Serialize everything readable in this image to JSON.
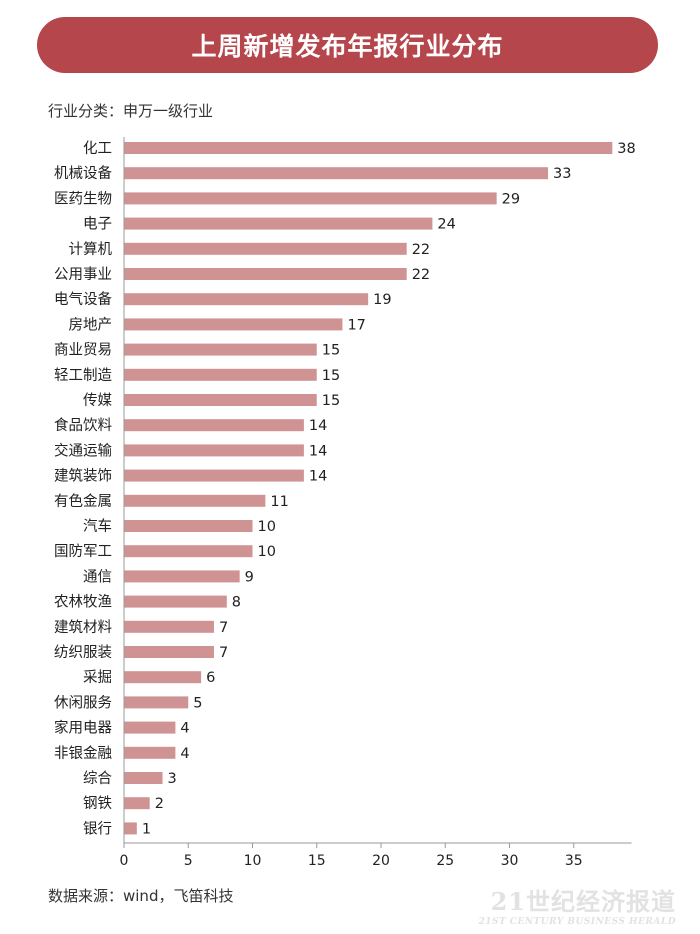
{
  "header": {
    "title": "上周新增发布年报行业分布",
    "subtitle": "行业分类：申万一级行业"
  },
  "footer": {
    "source": "数据来源：wind，飞笛科技",
    "watermark_main": "21世纪经济报道",
    "watermark_sub": "21ST CENTURY BUSINESS HERALD"
  },
  "colors": {
    "banner": "#b5464c",
    "bar": "#d09394",
    "axis": "#999999"
  },
  "chart_data": {
    "type": "bar",
    "orientation": "horizontal",
    "categories": [
      "化工",
      "机械设备",
      "医药生物",
      "电子",
      "计算机",
      "公用事业",
      "电气设备",
      "房地产",
      "商业贸易",
      "轻工制造",
      "传媒",
      "食品饮料",
      "交通运输",
      "建筑装饰",
      "有色金属",
      "汽车",
      "国防军工",
      "通信",
      "农林牧渔",
      "建筑材料",
      "纺织服装",
      "采掘",
      "休闲服务",
      "家用电器",
      "非银金融",
      "综合",
      "钢铁",
      "银行"
    ],
    "values": [
      38,
      33,
      29,
      24,
      22,
      22,
      19,
      17,
      15,
      15,
      15,
      14,
      14,
      14,
      11,
      10,
      10,
      9,
      8,
      7,
      7,
      6,
      5,
      4,
      4,
      3,
      2,
      1
    ],
    "x_ticks": [
      0,
      5,
      10,
      15,
      20,
      25,
      30,
      35
    ],
    "xlim": [
      0,
      39.5
    ],
    "grid": false,
    "legend": "none"
  }
}
